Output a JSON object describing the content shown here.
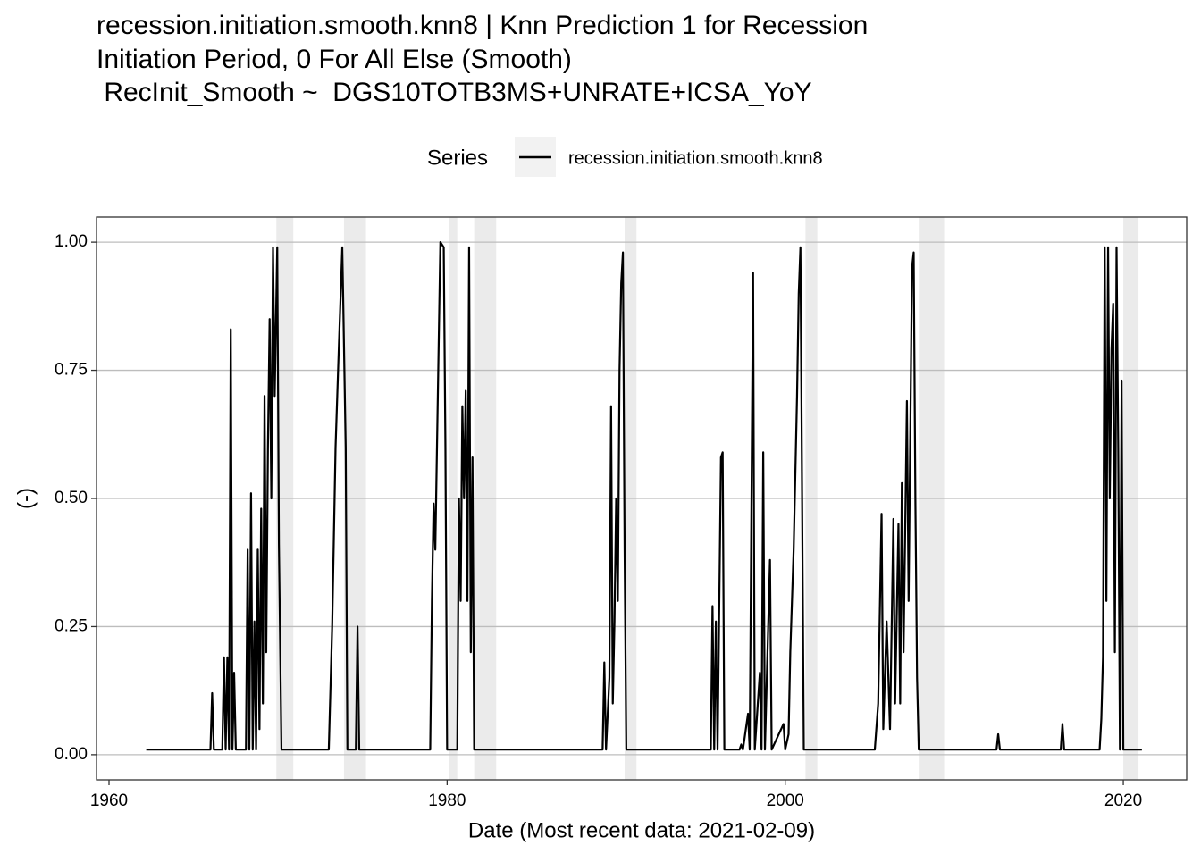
{
  "chart_data": {
    "type": "line",
    "title": [
      "recession.initiation.smooth.knn8 | Knn Prediction 1 for Recession",
      "Initiation Period, 0 For All Else (Smooth)",
      " RecInit_Smooth ~  DGS10TOTB3MS+UNRATE+ICSA_YoY"
    ],
    "legend_title": "Series",
    "xlabel": "Date (Most recent data: 2021-02-09)",
    "ylabel": "(-)",
    "xlim": [
      1959.26,
      2023.75
    ],
    "ylim": [
      -0.049,
      1.049
    ],
    "xticks": [
      1960,
      1980,
      2000,
      2020
    ],
    "yticks": [
      {
        "value": 0,
        "label": "0.00"
      },
      {
        "value": 0.25,
        "label": "0.25"
      },
      {
        "value": 0.5,
        "label": "0.50"
      },
      {
        "value": 0.75,
        "label": "0.75"
      },
      {
        "value": 1,
        "label": "1.00"
      }
    ],
    "grid": true,
    "recessions": [
      [
        1969.9,
        1970.9
      ],
      [
        1973.9,
        1975.2
      ],
      [
        1980.1,
        1980.6
      ],
      [
        1981.6,
        1982.9
      ],
      [
        1990.5,
        1991.2
      ],
      [
        2001.2,
        2001.9
      ],
      [
        2007.9,
        2009.4
      ],
      [
        2020.0,
        2020.9
      ]
    ],
    "recession_color": "#ebebeb",
    "x": [
      1962.2,
      1966.0,
      1966.1,
      1966.2,
      1966.7,
      1966.8,
      1966.9,
      1967.0,
      1967.1,
      1967.2,
      1967.3,
      1967.4,
      1967.5,
      1968.1,
      1968.2,
      1968.3,
      1968.4,
      1968.5,
      1968.6,
      1968.7,
      1968.8,
      1968.9,
      1969.0,
      1969.1,
      1969.2,
      1969.3,
      1969.4,
      1969.5,
      1969.6,
      1969.7,
      1969.8,
      1969.95,
      1970.05,
      1970.2,
      1973.0,
      1973.2,
      1973.4,
      1973.6,
      1973.8,
      1974.0,
      1974.1,
      1974.6,
      1974.7,
      1974.8,
      1979.0,
      1979.1,
      1979.2,
      1979.3,
      1979.5,
      1979.6,
      1979.8,
      1979.9,
      1980.0,
      1980.6,
      1980.7,
      1980.8,
      1980.9,
      1981.0,
      1981.1,
      1981.2,
      1981.3,
      1981.4,
      1981.5,
      1981.6,
      1989.2,
      1989.3,
      1989.4,
      1989.6,
      1989.7,
      1989.8,
      1989.9,
      1990.0,
      1990.1,
      1990.2,
      1990.3,
      1990.4,
      1990.5,
      1990.6,
      1995.6,
      1995.7,
      1995.8,
      1995.9,
      1996.0,
      1996.2,
      1996.3,
      1996.4,
      1997.3,
      1997.4,
      1997.5,
      1997.8,
      1997.9,
      1998.1,
      1998.2,
      1998.5,
      1998.6,
      1998.7,
      1998.8,
      1999.1,
      1999.2,
      1999.9,
      2000.0,
      2000.2,
      2000.3,
      2000.5,
      2000.7,
      2000.8,
      2000.9,
      2001.0,
      2001.1,
      2005.3,
      2005.5,
      2005.7,
      2005.8,
      2006.0,
      2006.2,
      2006.4,
      2006.5,
      2006.7,
      2006.8,
      2006.9,
      2007.0,
      2007.2,
      2007.3,
      2007.5,
      2007.6,
      2007.7,
      2007.8,
      2007.9,
      2012.5,
      2012.6,
      2012.7,
      2016.3,
      2016.4,
      2016.5,
      2018.6,
      2018.7,
      2018.8,
      2018.9,
      2019.0,
      2019.1,
      2019.2,
      2019.3,
      2019.4,
      2019.5,
      2019.6,
      2019.7,
      2019.8,
      2019.9,
      2020.0,
      2021.1
    ],
    "series": [
      {
        "name": "recession.initiation.smooth.knn8",
        "color": "#000000",
        "values": [
          0.01,
          0.01,
          0.12,
          0.01,
          0.01,
          0.19,
          0.01,
          0.19,
          0.01,
          0.83,
          0.01,
          0.16,
          0.01,
          0.01,
          0.4,
          0.01,
          0.51,
          0.01,
          0.26,
          0.01,
          0.4,
          0.05,
          0.48,
          0.1,
          0.7,
          0.2,
          0.6,
          0.85,
          0.5,
          0.99,
          0.7,
          0.99,
          0.41,
          0.01,
          0.01,
          0.25,
          0.6,
          0.8,
          0.99,
          0.6,
          0.01,
          0.01,
          0.25,
          0.01,
          0.01,
          0.3,
          0.49,
          0.4,
          0.8,
          1.0,
          0.99,
          0.6,
          0.01,
          0.01,
          0.5,
          0.3,
          0.68,
          0.5,
          0.71,
          0.3,
          0.99,
          0.2,
          0.58,
          0.01,
          0.01,
          0.18,
          0.01,
          0.15,
          0.68,
          0.1,
          0.26,
          0.5,
          0.3,
          0.75,
          0.92,
          0.98,
          0.4,
          0.01,
          0.01,
          0.29,
          0.01,
          0.26,
          0.01,
          0.58,
          0.59,
          0.01,
          0.01,
          0.02,
          0.01,
          0.08,
          0.01,
          0.94,
          0.01,
          0.16,
          0.01,
          0.59,
          0.01,
          0.38,
          0.01,
          0.06,
          0.01,
          0.04,
          0.2,
          0.4,
          0.7,
          0.9,
          0.99,
          0.5,
          0.01,
          0.01,
          0.1,
          0.47,
          0.05,
          0.26,
          0.05,
          0.46,
          0.1,
          0.45,
          0.1,
          0.53,
          0.2,
          0.69,
          0.3,
          0.95,
          0.98,
          0.5,
          0.15,
          0.01,
          0.01,
          0.04,
          0.01,
          0.01,
          0.06,
          0.01,
          0.01,
          0.07,
          0.19,
          0.99,
          0.3,
          0.99,
          0.5,
          0.79,
          0.88,
          0.2,
          0.99,
          0.6,
          0.01,
          0.73,
          0.01,
          0.01
        ]
      }
    ]
  }
}
